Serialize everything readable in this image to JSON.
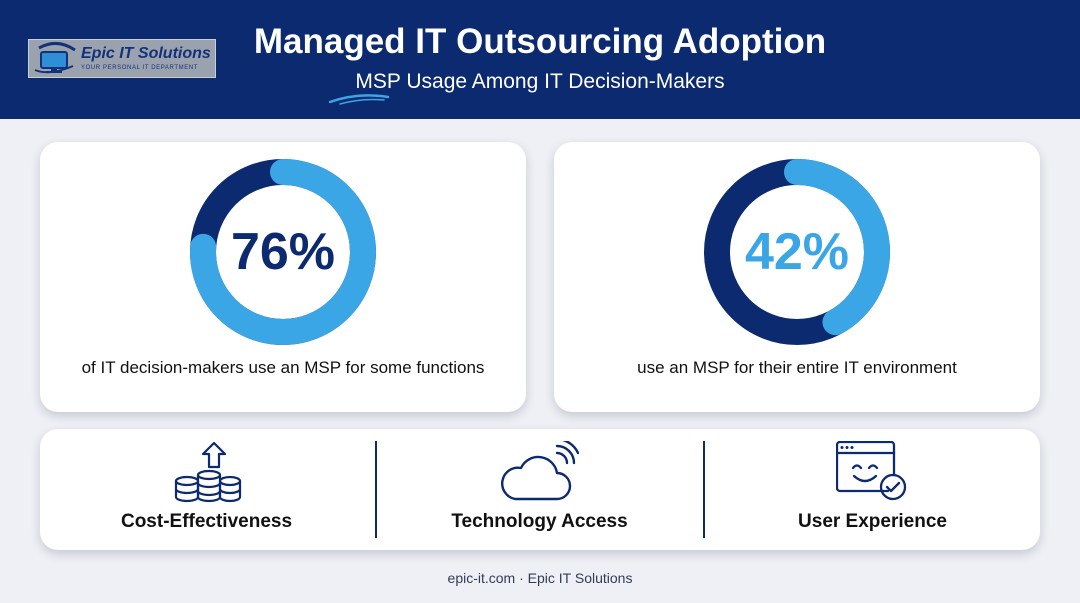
{
  "header": {
    "title": "Managed IT Outsourcing Adoption",
    "subtitle": "MSP Usage Among IT Decision-Makers"
  },
  "logo": {
    "name": "Epic IT Solutions",
    "tagline": "YOUR PERSONAL IT DEPARTMENT"
  },
  "stats": [
    {
      "value_text": "76%",
      "percent": 76,
      "description": "of IT decision-makers use an MSP for some functions",
      "ring_fill_color": "#3aa6e6",
      "ring_track_color": "#0b2a6f",
      "value_color": "#0b2a6f"
    },
    {
      "value_text": "42%",
      "percent": 42,
      "description": "use an MSP for their entire IT environment",
      "ring_fill_color": "#3aa6e6",
      "ring_track_color": "#0b2a6f",
      "value_color": "#3aa6e6"
    }
  ],
  "benefits": [
    {
      "label": "Cost-Effectiveness",
      "icon": "coins-stack-up-arrow-icon"
    },
    {
      "label": "Technology Access",
      "icon": "cloud-signal-icon"
    },
    {
      "label": "User Experience",
      "icon": "smiley-browser-check-icon"
    }
  ],
  "footer": "epic-it.com · Epic IT Solutions",
  "colors": {
    "navy": "#0b2a6f",
    "sky_blue": "#3aa6e6",
    "background": "#eef0f5"
  }
}
